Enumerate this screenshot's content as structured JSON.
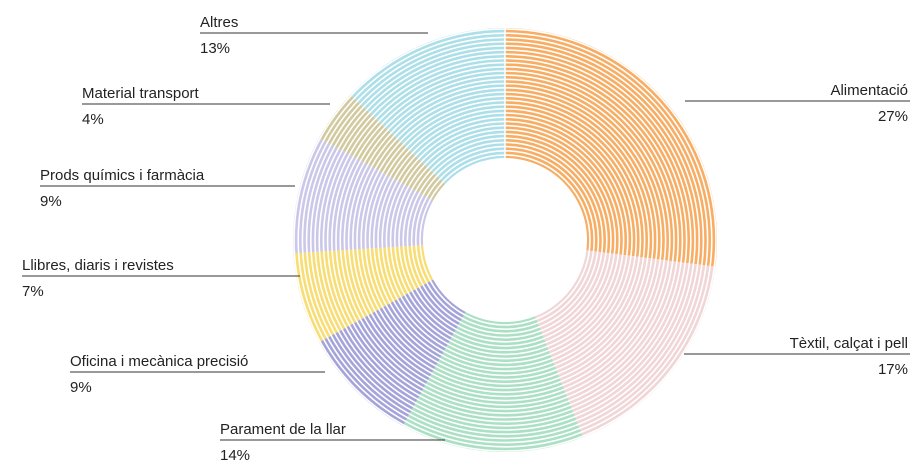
{
  "chart_data": {
    "type": "donut",
    "categories": [
      "Alimentació",
      "Tèxtil, calçat i pell",
      "Parament de la llar",
      "Oficina i mecànica precisió",
      "Llibres, diaris i revistes",
      "Prods químics i farmàcia",
      "Material transport",
      "Altres"
    ],
    "values": [
      27,
      17,
      14,
      9,
      7,
      9,
      4,
      13
    ],
    "value_labels": [
      "27%",
      "17%",
      "14%",
      "9%",
      "7%",
      "9%",
      "4%",
      "13%"
    ],
    "colors": [
      "#f7ad63",
      "#f0d6d6",
      "#ace0c4",
      "#a4a4da",
      "#f7dd73",
      "#cbc7e8",
      "#d2c99f",
      "#addfe8"
    ]
  }
}
